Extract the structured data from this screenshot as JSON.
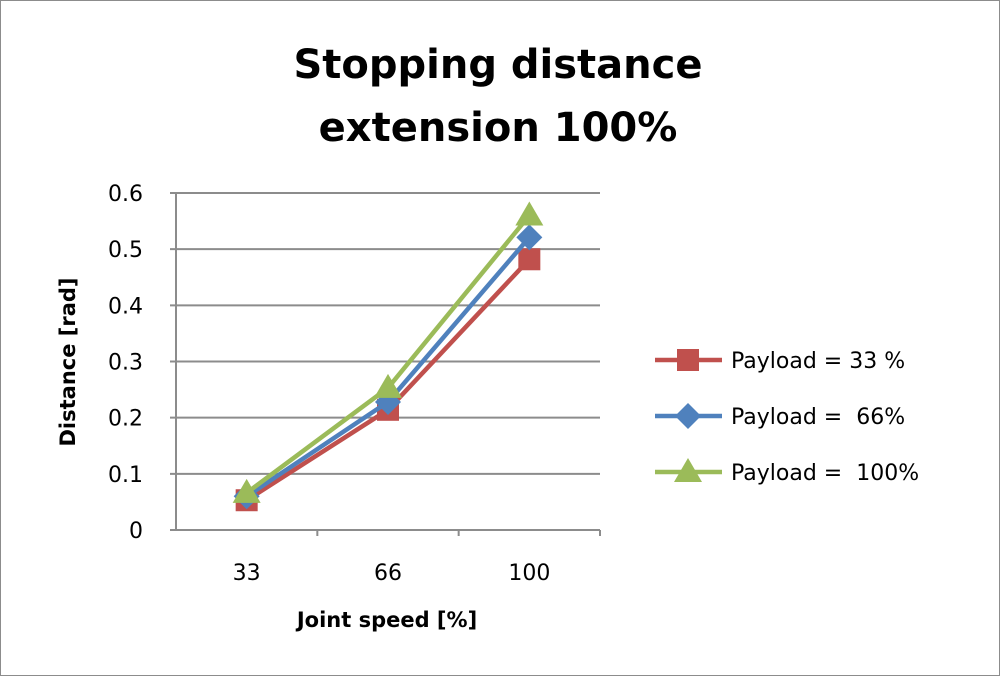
{
  "chart_data": {
    "type": "line",
    "title": [
      "Stopping distance",
      "extension 100%"
    ],
    "xlabel": "Joint speed [%]",
    "ylabel": "Distance [rad]",
    "categories": [
      "33",
      "66",
      "100"
    ],
    "ylim": [
      0,
      0.6
    ],
    "yticks": [
      "0",
      "0.1",
      "0.2",
      "0.3",
      "0.4",
      "0.5",
      "0.6"
    ],
    "grid": true,
    "legend_position": "right",
    "series": [
      {
        "name": "Payload = 33 %",
        "values": [
          0.053,
          0.214,
          0.482
        ],
        "color": "#c0504d",
        "marker": "square"
      },
      {
        "name": "Payload =  66%",
        "values": [
          0.06,
          0.228,
          0.521
        ],
        "color": "#4f81bd",
        "marker": "diamond"
      },
      {
        "name": "Payload =  100%",
        "values": [
          0.066,
          0.253,
          0.56
        ],
        "color": "#9bbb59",
        "marker": "triangle"
      }
    ]
  }
}
